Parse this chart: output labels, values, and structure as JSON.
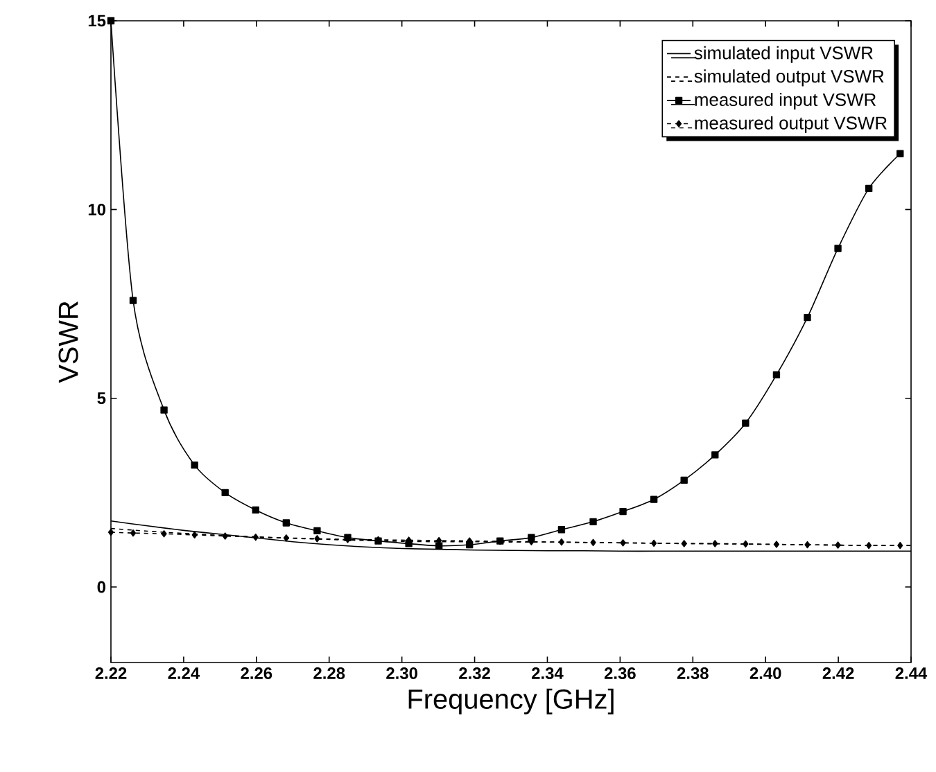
{
  "chart_data": {
    "type": "line",
    "xlabel": "Frequency [GHz]",
    "ylabel": "VSWR",
    "xlim": [
      2.22,
      2.44
    ],
    "ylim": [
      -2,
      15
    ],
    "xticks": [
      2.22,
      2.24,
      2.26,
      2.28,
      {
        "value": 2.3,
        "label": "2.30"
      },
      2.32,
      2.34,
      2.36,
      2.38,
      {
        "value": 2.4,
        "label": "2.40"
      },
      2.42,
      2.44
    ],
    "yticks": [
      0,
      5,
      10,
      15
    ],
    "legend": "top right",
    "grid": false,
    "series": [
      {
        "name": "simulated input VSWR",
        "color": "#000000",
        "line_style": "solid",
        "marker": "none",
        "x": [
          2.22,
          2.23,
          2.24,
          2.25,
          2.26,
          2.27,
          2.28,
          2.29,
          2.3,
          2.31,
          2.32,
          2.33,
          2.34,
          2.35,
          2.36,
          2.37,
          2.38,
          2.39,
          2.4,
          2.41,
          2.42,
          2.43,
          2.44
        ],
        "values": [
          1.75,
          1.62,
          1.5,
          1.4,
          1.3,
          1.2,
          1.12,
          1.06,
          1.02,
          1.0,
          0.98,
          0.97,
          0.96,
          0.96,
          0.95,
          0.95,
          0.95,
          0.95,
          0.95,
          0.95,
          0.95,
          0.95,
          0.95
        ]
      },
      {
        "name": "simulated output VSWR",
        "color": "#000000",
        "line_style": "dashed",
        "marker": "none",
        "x": [
          2.22,
          2.23,
          2.24,
          2.25,
          2.26,
          2.27,
          2.28,
          2.29,
          2.3,
          2.31,
          2.32,
          2.33,
          2.34,
          2.35,
          2.36,
          2.37,
          2.38,
          2.39,
          2.4,
          2.41,
          2.42,
          2.43,
          2.44
        ],
        "values": [
          1.55,
          1.48,
          1.42,
          1.37,
          1.33,
          1.29,
          1.26,
          1.23,
          1.21,
          1.2,
          1.2,
          1.19,
          1.19,
          1.18,
          1.17,
          1.16,
          1.15,
          1.14,
          1.13,
          1.12,
          1.11,
          1.1,
          1.1
        ]
      },
      {
        "name": "measured input VSWR",
        "color": "#000000",
        "line_style": "solid",
        "marker": "square",
        "x": [
          2.22,
          2.2261,
          2.2346,
          2.243,
          2.2514,
          2.2598,
          2.2682,
          2.2767,
          2.2851,
          2.2935,
          2.3019,
          2.3102,
          2.3186,
          2.327,
          2.3356,
          2.3439,
          2.3526,
          2.3608,
          2.3693,
          2.3776,
          2.3861,
          2.3945,
          2.403,
          2.4115,
          2.4199,
          2.4284,
          2.437
        ],
        "values": [
          15,
          7.59,
          4.69,
          3.23,
          2.5,
          2.04,
          1.7,
          1.49,
          1.31,
          1.22,
          1.15,
          1.09,
          1.12,
          1.22,
          1.31,
          1.52,
          1.73,
          2.0,
          2.32,
          2.83,
          3.5,
          4.34,
          5.62,
          7.14,
          8.97,
          10.56,
          11.48
        ]
      },
      {
        "name": "measured output VSWR",
        "color": "#000000",
        "line_style": "dashed",
        "marker": "diamond",
        "x": [
          2.22,
          2.2261,
          2.2346,
          2.243,
          2.2514,
          2.2598,
          2.2682,
          2.2767,
          2.2851,
          2.2935,
          2.3019,
          2.3102,
          2.3186,
          2.327,
          2.3356,
          2.3439,
          2.3526,
          2.3608,
          2.3693,
          2.3776,
          2.3861,
          2.3945,
          2.403,
          2.4115,
          2.4199,
          2.4284,
          2.437
        ],
        "values": [
          1.45,
          1.43,
          1.41,
          1.38,
          1.35,
          1.32,
          1.3,
          1.28,
          1.26,
          1.25,
          1.24,
          1.23,
          1.22,
          1.21,
          1.2,
          1.19,
          1.18,
          1.17,
          1.16,
          1.15,
          1.15,
          1.14,
          1.13,
          1.12,
          1.11,
          1.1,
          1.1
        ]
      }
    ]
  }
}
